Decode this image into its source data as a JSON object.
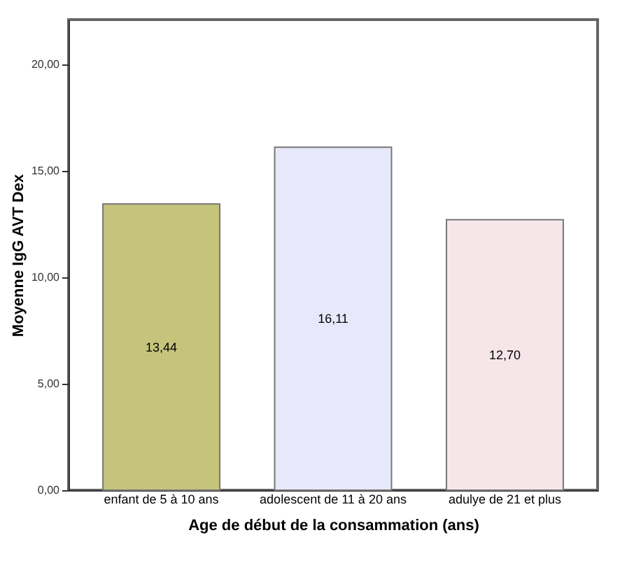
{
  "chart_data": {
    "type": "bar",
    "xlabel": "Age de début de la consammation (ans)",
    "ylabel": "Moyenne IgG AVT Dex",
    "categories": [
      "enfant de 5 à 10 ans",
      "adolescent de 11 à 20 ans",
      "adulye de 21 et plus"
    ],
    "values": [
      13.44,
      16.11,
      12.7
    ],
    "value_labels": [
      "13,44",
      "16,11",
      "12,70"
    ],
    "colors": [
      "#c4c47c",
      "#e8e8fb",
      "#f6e6ea"
    ],
    "ylim": [
      0,
      22.1
    ],
    "yticks": [
      {
        "value": 0,
        "label": "0,00"
      },
      {
        "value": 5,
        "label": "5,00"
      },
      {
        "value": 10,
        "label": "10,00"
      },
      {
        "value": 15,
        "label": "15,00"
      },
      {
        "value": 20,
        "label": "20,00"
      }
    ],
    "grid": false
  }
}
